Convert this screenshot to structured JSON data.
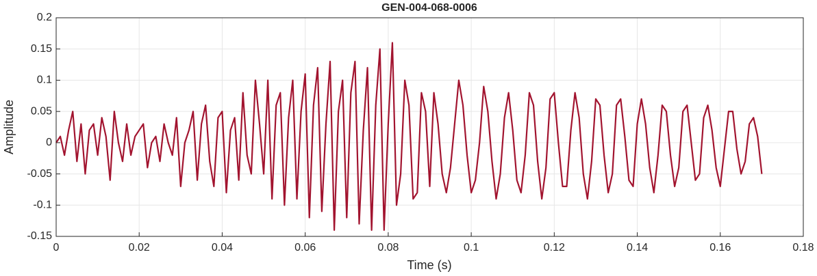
{
  "chart_data": {
    "type": "line",
    "title": "GEN-004-068-0006",
    "xlabel": "Time (s)",
    "ylabel": "Amplitude",
    "x": [
      0,
      0.001,
      0.002,
      0.003,
      0.004,
      0.005,
      0.006,
      0.007,
      0.008,
      0.009,
      0.01,
      0.011,
      0.012,
      0.013,
      0.014,
      0.015,
      0.016,
      0.017,
      0.018,
      0.019,
      0.02,
      0.021,
      0.022,
      0.023,
      0.024,
      0.025,
      0.026,
      0.027,
      0.028,
      0.029,
      0.03,
      0.031,
      0.032,
      0.033,
      0.034,
      0.035,
      0.036,
      0.037,
      0.038,
      0.039,
      0.04,
      0.041,
      0.042,
      0.043,
      0.044,
      0.045,
      0.046,
      0.047,
      0.048,
      0.049,
      0.05,
      0.051,
      0.052,
      0.053,
      0.054,
      0.055,
      0.056,
      0.057,
      0.058,
      0.059,
      0.06,
      0.061,
      0.062,
      0.063,
      0.064,
      0.065,
      0.066,
      0.067,
      0.068,
      0.069,
      0.07,
      0.071,
      0.072,
      0.073,
      0.074,
      0.075,
      0.076,
      0.077,
      0.078,
      0.079,
      0.08,
      0.081,
      0.082,
      0.083,
      0.084,
      0.085,
      0.086,
      0.087,
      0.088,
      0.089,
      0.09,
      0.091,
      0.092,
      0.093,
      0.094,
      0.095,
      0.096,
      0.097,
      0.098,
      0.099,
      0.1,
      0.101,
      0.102,
      0.103,
      0.104,
      0.105,
      0.106,
      0.107,
      0.108,
      0.109,
      0.11,
      0.111,
      0.112,
      0.113,
      0.114,
      0.115,
      0.116,
      0.117,
      0.118,
      0.119,
      0.12,
      0.121,
      0.122,
      0.123,
      0.124,
      0.125,
      0.126,
      0.127,
      0.128,
      0.129,
      0.13,
      0.131,
      0.132,
      0.133,
      0.134,
      0.135,
      0.136,
      0.137,
      0.138,
      0.139,
      0.14,
      0.141,
      0.142,
      0.143,
      0.144,
      0.145,
      0.146,
      0.147,
      0.148,
      0.149,
      0.15,
      0.151,
      0.152,
      0.153,
      0.154,
      0.155,
      0.156,
      0.157,
      0.158,
      0.159,
      0.16,
      0.161,
      0.162,
      0.163,
      0.164,
      0.165,
      0.166,
      0.167,
      0.168,
      0.169,
      0.17
    ],
    "series": [
      {
        "color": "#a2142f",
        "values": [
          0,
          0.01,
          -0.02,
          0.02,
          0.05,
          -0.03,
          0.03,
          -0.05,
          0.02,
          0.03,
          -0.02,
          0.04,
          0.01,
          -0.06,
          0.05,
          0.0,
          -0.03,
          0.03,
          -0.02,
          0.01,
          0.02,
          0.03,
          -0.04,
          0.0,
          0.01,
          -0.03,
          0.03,
          0.0,
          -0.02,
          0.04,
          -0.07,
          0.0,
          0.02,
          0.05,
          -0.06,
          0.03,
          0.06,
          -0.03,
          -0.07,
          0.04,
          0.05,
          -0.08,
          0.02,
          0.04,
          -0.06,
          0.08,
          -0.02,
          -0.05,
          0.1,
          0.03,
          -0.05,
          0.1,
          -0.09,
          0.06,
          0.08,
          -0.1,
          0.04,
          0.1,
          -0.09,
          0.05,
          0.11,
          -0.12,
          0.06,
          0.12,
          -0.11,
          0.03,
          0.13,
          -0.14,
          0.05,
          0.1,
          -0.12,
          0.08,
          0.13,
          -0.13,
          0.02,
          0.12,
          -0.14,
          0.06,
          0.15,
          -0.14,
          0.03,
          0.16,
          -0.1,
          -0.05,
          0.1,
          0.06,
          -0.09,
          -0.08,
          0.08,
          0.05,
          -0.07,
          0.08,
          0.03,
          -0.05,
          -0.08,
          -0.04,
          0.03,
          0.1,
          0.06,
          -0.02,
          -0.08,
          -0.06,
          0.0,
          0.09,
          0.05,
          -0.03,
          -0.09,
          -0.05,
          0.04,
          0.08,
          0.02,
          -0.06,
          -0.08,
          -0.02,
          0.08,
          0.06,
          -0.03,
          -0.09,
          -0.04,
          0.07,
          0.08,
          0.0,
          -0.07,
          -0.07,
          0.02,
          0.08,
          0.04,
          -0.05,
          -0.09,
          -0.03,
          0.07,
          0.06,
          -0.02,
          -0.08,
          -0.05,
          0.06,
          0.07,
          0.01,
          -0.06,
          -0.07,
          0.03,
          0.07,
          0.03,
          -0.04,
          -0.08,
          -0.02,
          0.06,
          0.05,
          -0.02,
          -0.07,
          -0.04,
          0.05,
          0.06,
          0.0,
          -0.06,
          -0.05,
          0.04,
          0.06,
          0.02,
          -0.04,
          -0.07,
          -0.01,
          0.05,
          0.05,
          -0.01,
          -0.05,
          -0.03,
          0.03,
          0.04,
          0.01,
          -0.05
        ]
      }
    ],
    "xlim": [
      0,
      0.18
    ],
    "xticks": [
      0,
      0.02,
      0.04,
      0.06,
      0.08,
      0.1,
      0.12,
      0.14,
      0.16,
      0.18
    ],
    "ylim": [
      -0.15,
      0.2
    ],
    "yticks": [
      -0.15,
      -0.1,
      -0.05,
      0,
      0.05,
      0.1,
      0.15,
      0.2
    ],
    "grid": true
  }
}
